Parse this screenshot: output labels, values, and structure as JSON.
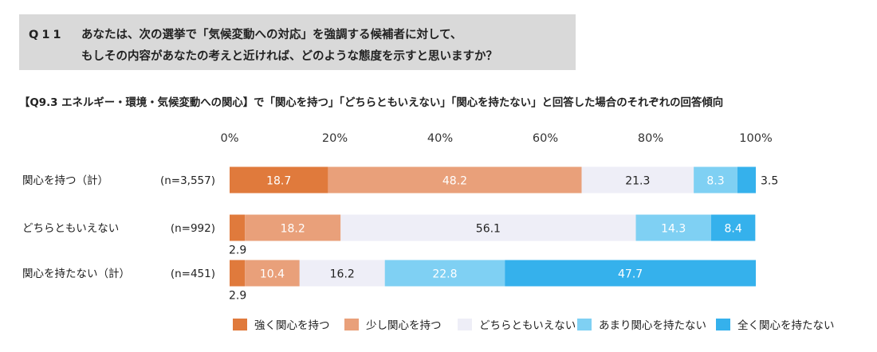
{
  "question": {
    "number": "Q11",
    "line1": "あなたは、次の選挙で「気候変動への対応」を強調する候補者に対して、",
    "line2": "もしその内容があなたの考えと近ければ、どのような態度を示すと思いますか？"
  },
  "subtitle": "【Q9.3 エネルギー・環境・気候変動への関心】で「関心を持つ」「どちらともいえない」「関心を持たない」と回答した場合のそれぞれの回答傾向",
  "chart_data": {
    "type": "bar",
    "orientation": "horizontal-stacked-100",
    "xlim": [
      0,
      100
    ],
    "x_ticks": [
      "0%",
      "20%",
      "40%",
      "60%",
      "80%",
      "100%"
    ],
    "categories": [
      "関心を持つ（計）",
      "どちらともいえない",
      "関心を持たない（計）"
    ],
    "n_labels": [
      "(n=3,557)",
      "(n=992)",
      "(n=451)"
    ],
    "series": [
      {
        "name": "強く関心を持つ",
        "color": "#e07a3c",
        "label_color": "#ffffff",
        "values": [
          18.7,
          2.9,
          2.9
        ]
      },
      {
        "name": "少し関心を持つ",
        "color": "#e9a07a",
        "label_color": "#ffffff",
        "values": [
          48.2,
          18.2,
          10.4
        ]
      },
      {
        "name": "どちらともいえない",
        "color": "#eeeef7",
        "label_color": "#222222",
        "values": [
          21.3,
          56.1,
          16.2
        ]
      },
      {
        "name": "あまり関心を持たない",
        "color": "#7fd0f3",
        "label_color": "#ffffff",
        "values": [
          8.3,
          14.3,
          22.8
        ]
      },
      {
        "name": "全く関心を持たない",
        "color": "#35b1ec",
        "label_color": "#ffffff",
        "values": [
          3.5,
          8.4,
          47.7
        ]
      }
    ],
    "legend_position": "bottom-right",
    "grid": false
  }
}
